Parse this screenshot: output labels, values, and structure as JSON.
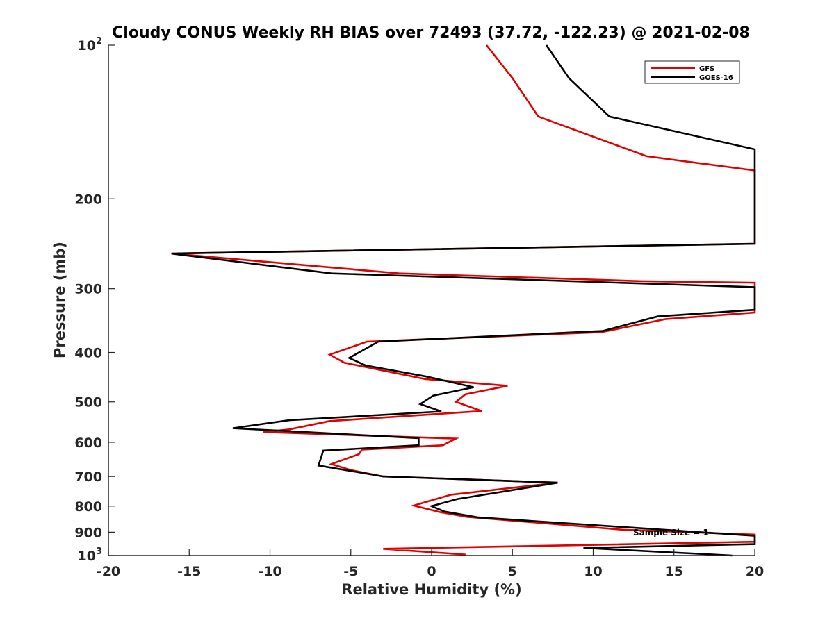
{
  "chart_data": {
    "type": "line",
    "title": "Cloudy CONUS Weekly RH BIAS over 72493 (37.72, -122.23) @ 2021-02-08",
    "xlabel": "Relative Humidity (%)",
    "ylabel": "Pressure (mb)",
    "xlim": [
      -20,
      20
    ],
    "ylim": [
      100,
      1000
    ],
    "y_scale": "log",
    "y_reversed": true,
    "x_ticks": [
      "-20",
      "-15",
      "-10",
      "-5",
      "0",
      "5",
      "10",
      "15",
      "20"
    ],
    "y_ticks": [
      {
        "value": 100,
        "base": "10",
        "exp": "2"
      },
      {
        "value": 200,
        "label": "200"
      },
      {
        "value": 300,
        "label": "300"
      },
      {
        "value": 400,
        "label": "400"
      },
      {
        "value": 500,
        "label": "500"
      },
      {
        "value": 600,
        "label": "600"
      },
      {
        "value": 700,
        "label": "700"
      },
      {
        "value": 800,
        "label": "800"
      },
      {
        "value": 900,
        "label": "900"
      },
      {
        "value": 1000,
        "base": "10",
        "exp": "3"
      }
    ],
    "legend_position": "top-right",
    "grid": false,
    "annotation": "Sample Size = 1",
    "series": [
      {
        "name": "GFS",
        "color": "#e00000",
        "points": [
          [
            3.4,
            100
          ],
          [
            5.0,
            116
          ],
          [
            6.6,
            138
          ],
          [
            13.3,
            165
          ],
          [
            20.0,
            176
          ],
          [
            20.0,
            245
          ],
          [
            -16.1,
            256
          ],
          [
            -2.0,
            280
          ],
          [
            13.0,
            290
          ],
          [
            20.0,
            292
          ],
          [
            20.0,
            334
          ],
          [
            14.5,
            344
          ],
          [
            10.5,
            365
          ],
          [
            -4.0,
            381
          ],
          [
            -6.3,
            404
          ],
          [
            -5.4,
            419
          ],
          [
            -0.4,
            451
          ],
          [
            4.7,
            465
          ],
          [
            2.1,
            483
          ],
          [
            1.5,
            500
          ],
          [
            3.1,
            521
          ],
          [
            -6.3,
            545
          ],
          [
            -8.8,
            566
          ],
          [
            -10.4,
            573
          ],
          [
            1.5,
            590
          ],
          [
            0.7,
            608
          ],
          [
            -4.3,
            620
          ],
          [
            -4.5,
            633
          ],
          [
            -6.2,
            662
          ],
          [
            -5.0,
            680
          ],
          [
            -3.0,
            700
          ],
          [
            7.8,
            720
          ],
          [
            1.2,
            760
          ],
          [
            -1.1,
            798
          ],
          [
            0.5,
            822
          ],
          [
            2.2,
            840
          ],
          [
            11.8,
            890
          ],
          [
            20.0,
            910
          ],
          [
            20.0,
            940
          ],
          [
            -3.0,
            970
          ],
          [
            2.1,
            996
          ]
        ]
      },
      {
        "name": "GOES-16",
        "color": "#000000",
        "points": [
          [
            7.1,
            100
          ],
          [
            8.5,
            116
          ],
          [
            11.0,
            138
          ],
          [
            20.0,
            160
          ],
          [
            20.0,
            245
          ],
          [
            -16.1,
            256
          ],
          [
            -6.2,
            280
          ],
          [
            20.0,
            298
          ],
          [
            20.0,
            330
          ],
          [
            14.0,
            340
          ],
          [
            10.6,
            363
          ],
          [
            -3.3,
            381
          ],
          [
            -5.1,
            410
          ],
          [
            -4.1,
            424
          ],
          [
            -0.3,
            446
          ],
          [
            2.6,
            468
          ],
          [
            0.1,
            486
          ],
          [
            -0.7,
            505
          ],
          [
            0.6,
            522
          ],
          [
            -8.8,
            543
          ],
          [
            -12.3,
            563
          ],
          [
            -0.8,
            589
          ],
          [
            -0.8,
            608
          ],
          [
            -6.7,
            623
          ],
          [
            -7.0,
            666
          ],
          [
            -3.0,
            700
          ],
          [
            7.8,
            720
          ],
          [
            1.6,
            775
          ],
          [
            0.0,
            800
          ],
          [
            0.8,
            820
          ],
          [
            2.9,
            842
          ],
          [
            20.0,
            915
          ],
          [
            20.0,
            950
          ],
          [
            9.4,
            966
          ],
          [
            18.6,
            1000
          ]
        ]
      }
    ]
  }
}
